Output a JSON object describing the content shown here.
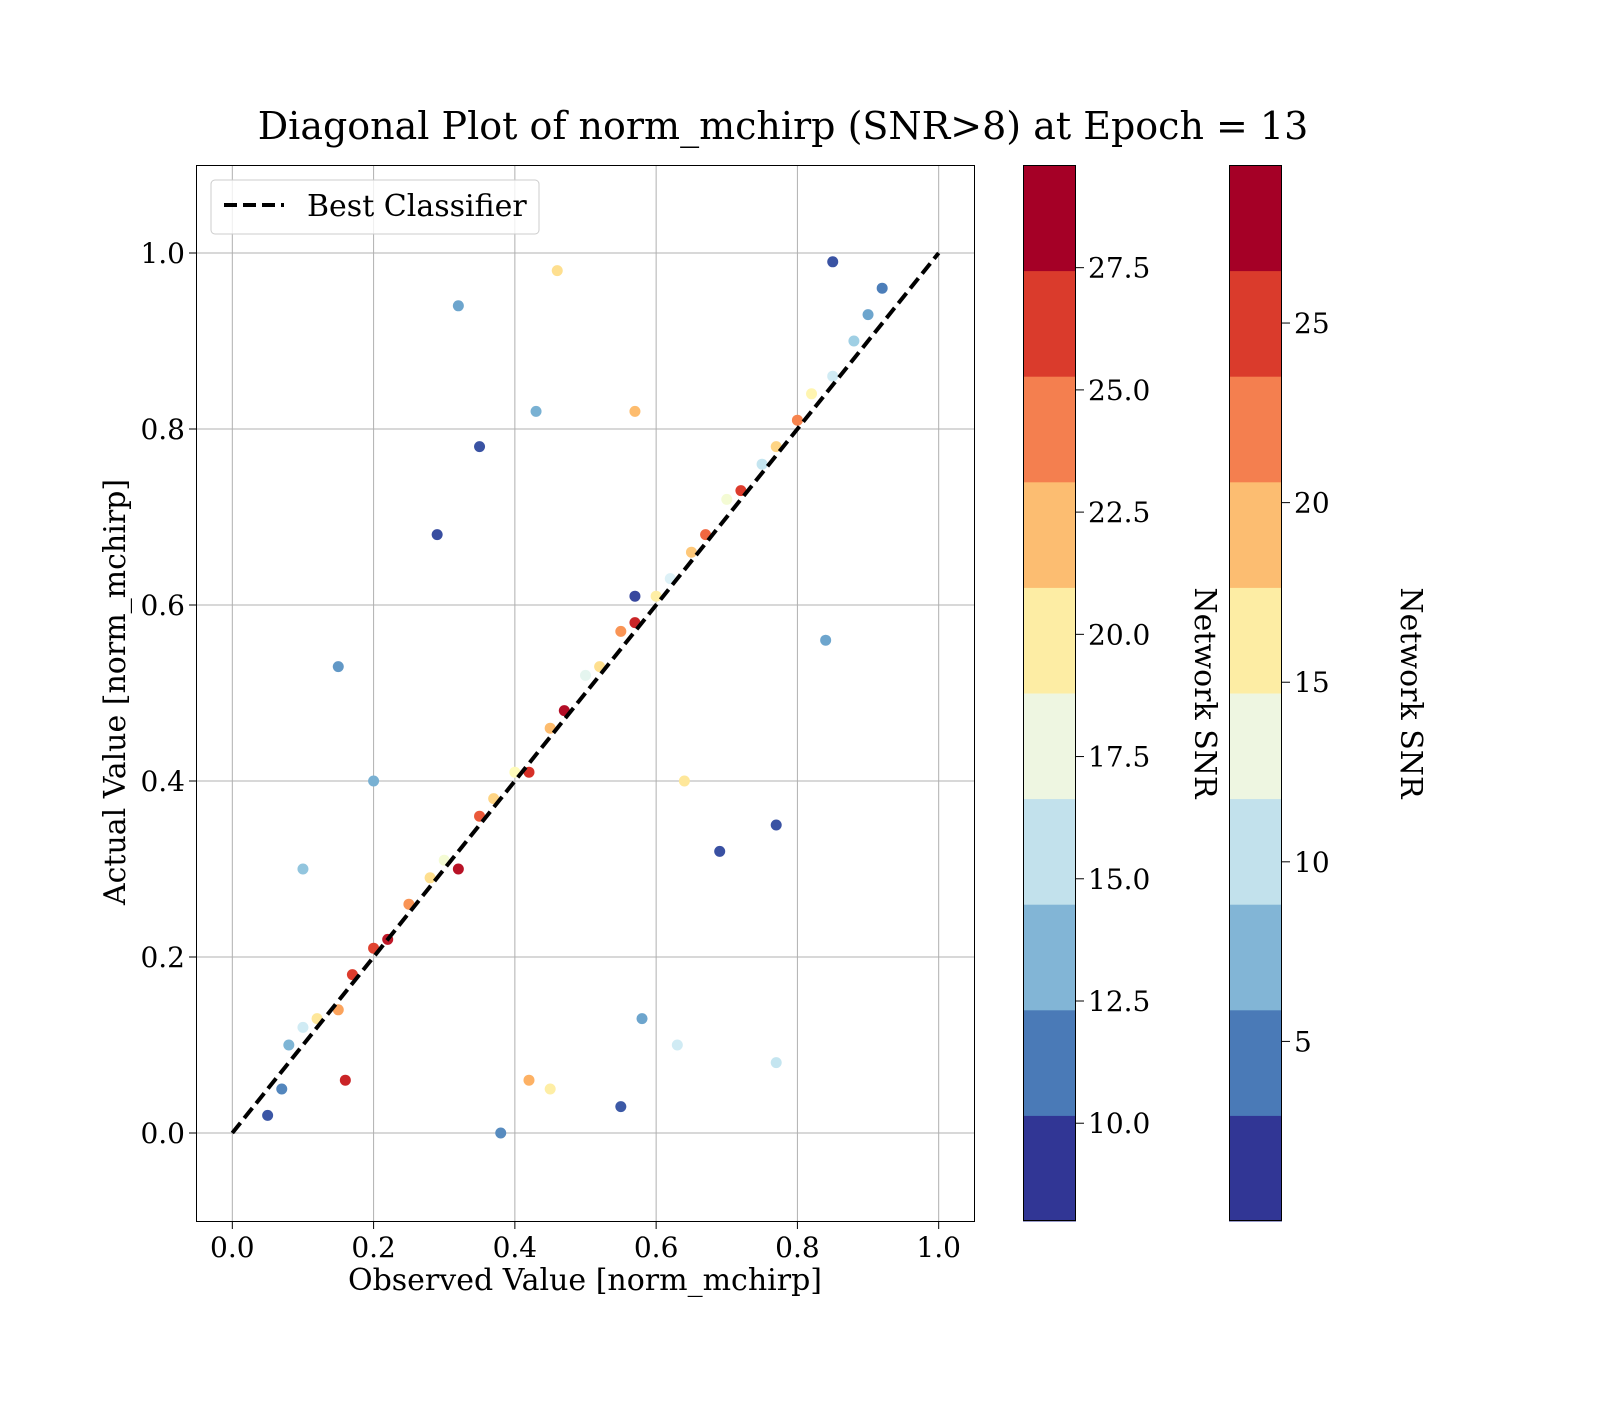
{
  "chart_data": {
    "type": "scatter",
    "title": "Diagonal Plot of norm_mchirp (SNR>8) at Epoch = 13",
    "xlabel": "Observed Value [norm_mchirp]",
    "ylabel": "Actual Value [norm_mchirp]",
    "xlim": [
      -0.05,
      1.05
    ],
    "ylim": [
      -0.1,
      1.1
    ],
    "x_ticks": [
      "0.0",
      "0.2",
      "0.4",
      "0.6",
      "0.8",
      "1.0"
    ],
    "y_ticks": [
      "0.0",
      "0.2",
      "0.4",
      "0.6",
      "0.8",
      "1.0"
    ],
    "grid": true,
    "legend_position": "top-left",
    "reference_line": {
      "name": "Best Classifier",
      "x": [
        0.0,
        1.0
      ],
      "y": [
        0.0,
        1.0
      ],
      "style": "dashed",
      "color": "#000000"
    },
    "colormap": [
      "#313695",
      "#4575b4",
      "#74add1",
      "#abd9e9",
      "#e0f3f8",
      "#ffffbf",
      "#fee090",
      "#fdae61",
      "#f46d43",
      "#d73027",
      "#a50026"
    ],
    "color_steps": [
      "#313695",
      "#4a7ab7",
      "#82b5d6",
      "#c2e1ec",
      "#eef6e1",
      "#fdeda4",
      "#fcbd71",
      "#f47f4f",
      "#da3b2c",
      "#a50026"
    ],
    "colorbars": [
      {
        "label": "Network SNR",
        "range": [
          8.0,
          29.6
        ],
        "ticks": [
          "10.0",
          "12.5",
          "15.0",
          "17.5",
          "20.0",
          "22.5",
          "25.0",
          "27.5"
        ],
        "tick_values": [
          10.0,
          12.5,
          15.0,
          17.5,
          20.0,
          22.5,
          25.0,
          27.5
        ]
      },
      {
        "label": "Network SNR",
        "range": [
          0.0,
          29.4
        ],
        "ticks": [
          "5",
          "10",
          "15",
          "20",
          "25"
        ],
        "tick_values": [
          5,
          10,
          15,
          20,
          25
        ]
      }
    ],
    "series": [
      {
        "points": [
          [
            0.05,
            0.02,
            9.1
          ],
          [
            0.07,
            0.05,
            10.8
          ],
          [
            0.08,
            0.1,
            12.7
          ],
          [
            0.1,
            0.12,
            16.0
          ],
          [
            0.12,
            0.13,
            20.5
          ],
          [
            0.15,
            0.14,
            23.5
          ],
          [
            0.17,
            0.18,
            27.0
          ],
          [
            0.2,
            0.21,
            26.8
          ],
          [
            0.22,
            0.22,
            28.5
          ],
          [
            0.25,
            0.26,
            24.0
          ],
          [
            0.28,
            0.29,
            21.0
          ],
          [
            0.3,
            0.31,
            18.0
          ],
          [
            0.32,
            0.3,
            28.8
          ],
          [
            0.35,
            0.36,
            26.0
          ],
          [
            0.37,
            0.38,
            21.5
          ],
          [
            0.4,
            0.41,
            19.0
          ],
          [
            0.42,
            0.41,
            27.5
          ],
          [
            0.45,
            0.46,
            22.5
          ],
          [
            0.47,
            0.48,
            29.0
          ],
          [
            0.5,
            0.52,
            17.0
          ],
          [
            0.52,
            0.53,
            21.0
          ],
          [
            0.55,
            0.57,
            24.0
          ],
          [
            0.57,
            0.58,
            28.0
          ],
          [
            0.6,
            0.61,
            20.0
          ],
          [
            0.62,
            0.63,
            16.5
          ],
          [
            0.65,
            0.66,
            22.0
          ],
          [
            0.67,
            0.68,
            25.5
          ],
          [
            0.7,
            0.72,
            18.0
          ],
          [
            0.72,
            0.73,
            27.0
          ],
          [
            0.75,
            0.76,
            15.5
          ],
          [
            0.77,
            0.78,
            21.5
          ],
          [
            0.8,
            0.81,
            24.5
          ],
          [
            0.82,
            0.84,
            19.5
          ],
          [
            0.85,
            0.86,
            16.0
          ],
          [
            0.88,
            0.9,
            14.0
          ],
          [
            0.9,
            0.93,
            12.0
          ],
          [
            0.92,
            0.96,
            10.5
          ],
          [
            0.85,
            0.99,
            9.0
          ],
          [
            0.32,
            0.94,
            12.0
          ],
          [
            0.46,
            0.98,
            21.0
          ],
          [
            0.15,
            0.53,
            11.5
          ],
          [
            0.29,
            0.68,
            8.8
          ],
          [
            0.35,
            0.78,
            9.0
          ],
          [
            0.43,
            0.82,
            12.5
          ],
          [
            0.57,
            0.61,
            8.6
          ],
          [
            0.64,
            0.4,
            20.5
          ],
          [
            0.69,
            0.32,
            8.9
          ],
          [
            0.77,
            0.35,
            9.0
          ],
          [
            0.77,
            0.08,
            15.5
          ],
          [
            0.63,
            0.1,
            16.0
          ],
          [
            0.58,
            0.13,
            12.0
          ],
          [
            0.55,
            0.03,
            9.2
          ],
          [
            0.42,
            0.06,
            23.0
          ],
          [
            0.45,
            0.05,
            20.0
          ],
          [
            0.38,
            0.0,
            11.0
          ],
          [
            0.16,
            0.06,
            28.0
          ],
          [
            0.2,
            0.4,
            12.5
          ],
          [
            0.1,
            0.3,
            13.5
          ],
          [
            0.84,
            0.56,
            12.0
          ],
          [
            0.57,
            0.82,
            22.5
          ]
        ]
      }
    ]
  }
}
